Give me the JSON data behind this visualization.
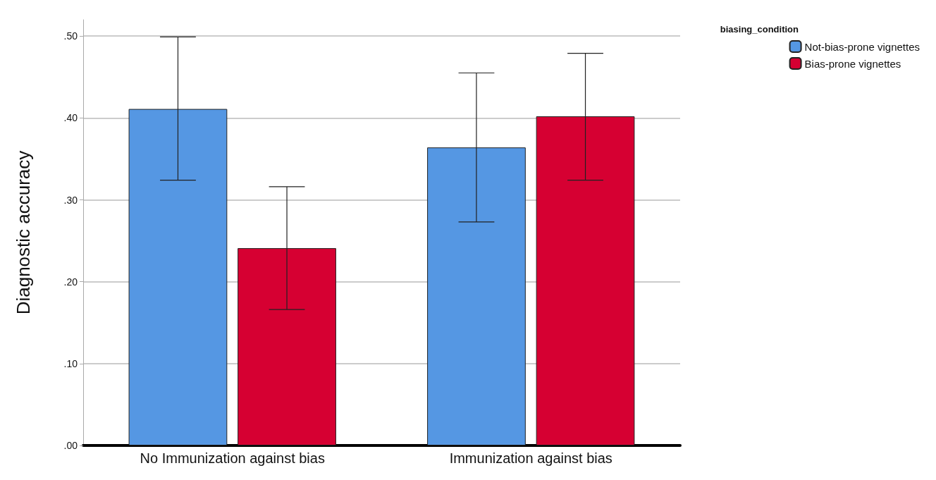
{
  "chart_data": {
    "type": "bar",
    "ylabel": "Diagnostic accuracy",
    "legend_title": "biasing_condition",
    "categories": [
      "No Immunization against bias",
      "Immunization against bias"
    ],
    "series": [
      {
        "name": "Not-bias-prone vignettes",
        "color": "#5597e3",
        "values": [
          0.411,
          0.364
        ],
        "errors": [
          [
            0.324,
            0.499
          ],
          [
            0.273,
            0.455
          ]
        ]
      },
      {
        "name": "Bias-prone vignettes",
        "color": "#d60032",
        "values": [
          0.241,
          0.402
        ],
        "errors": [
          [
            0.166,
            0.316
          ],
          [
            0.324,
            0.479
          ]
        ]
      }
    ],
    "ylim": [
      0,
      0.52
    ],
    "yticks": [
      {
        "value": 0,
        "label": ".00"
      },
      {
        "value": 0.1,
        "label": ".10"
      },
      {
        "value": 0.2,
        "label": ".20"
      },
      {
        "value": 0.3,
        "label": ".30"
      },
      {
        "value": 0.4,
        "label": ".40"
      },
      {
        "value": 0.5,
        "label": ".50"
      }
    ],
    "grid": "y",
    "legend": "top right"
  }
}
